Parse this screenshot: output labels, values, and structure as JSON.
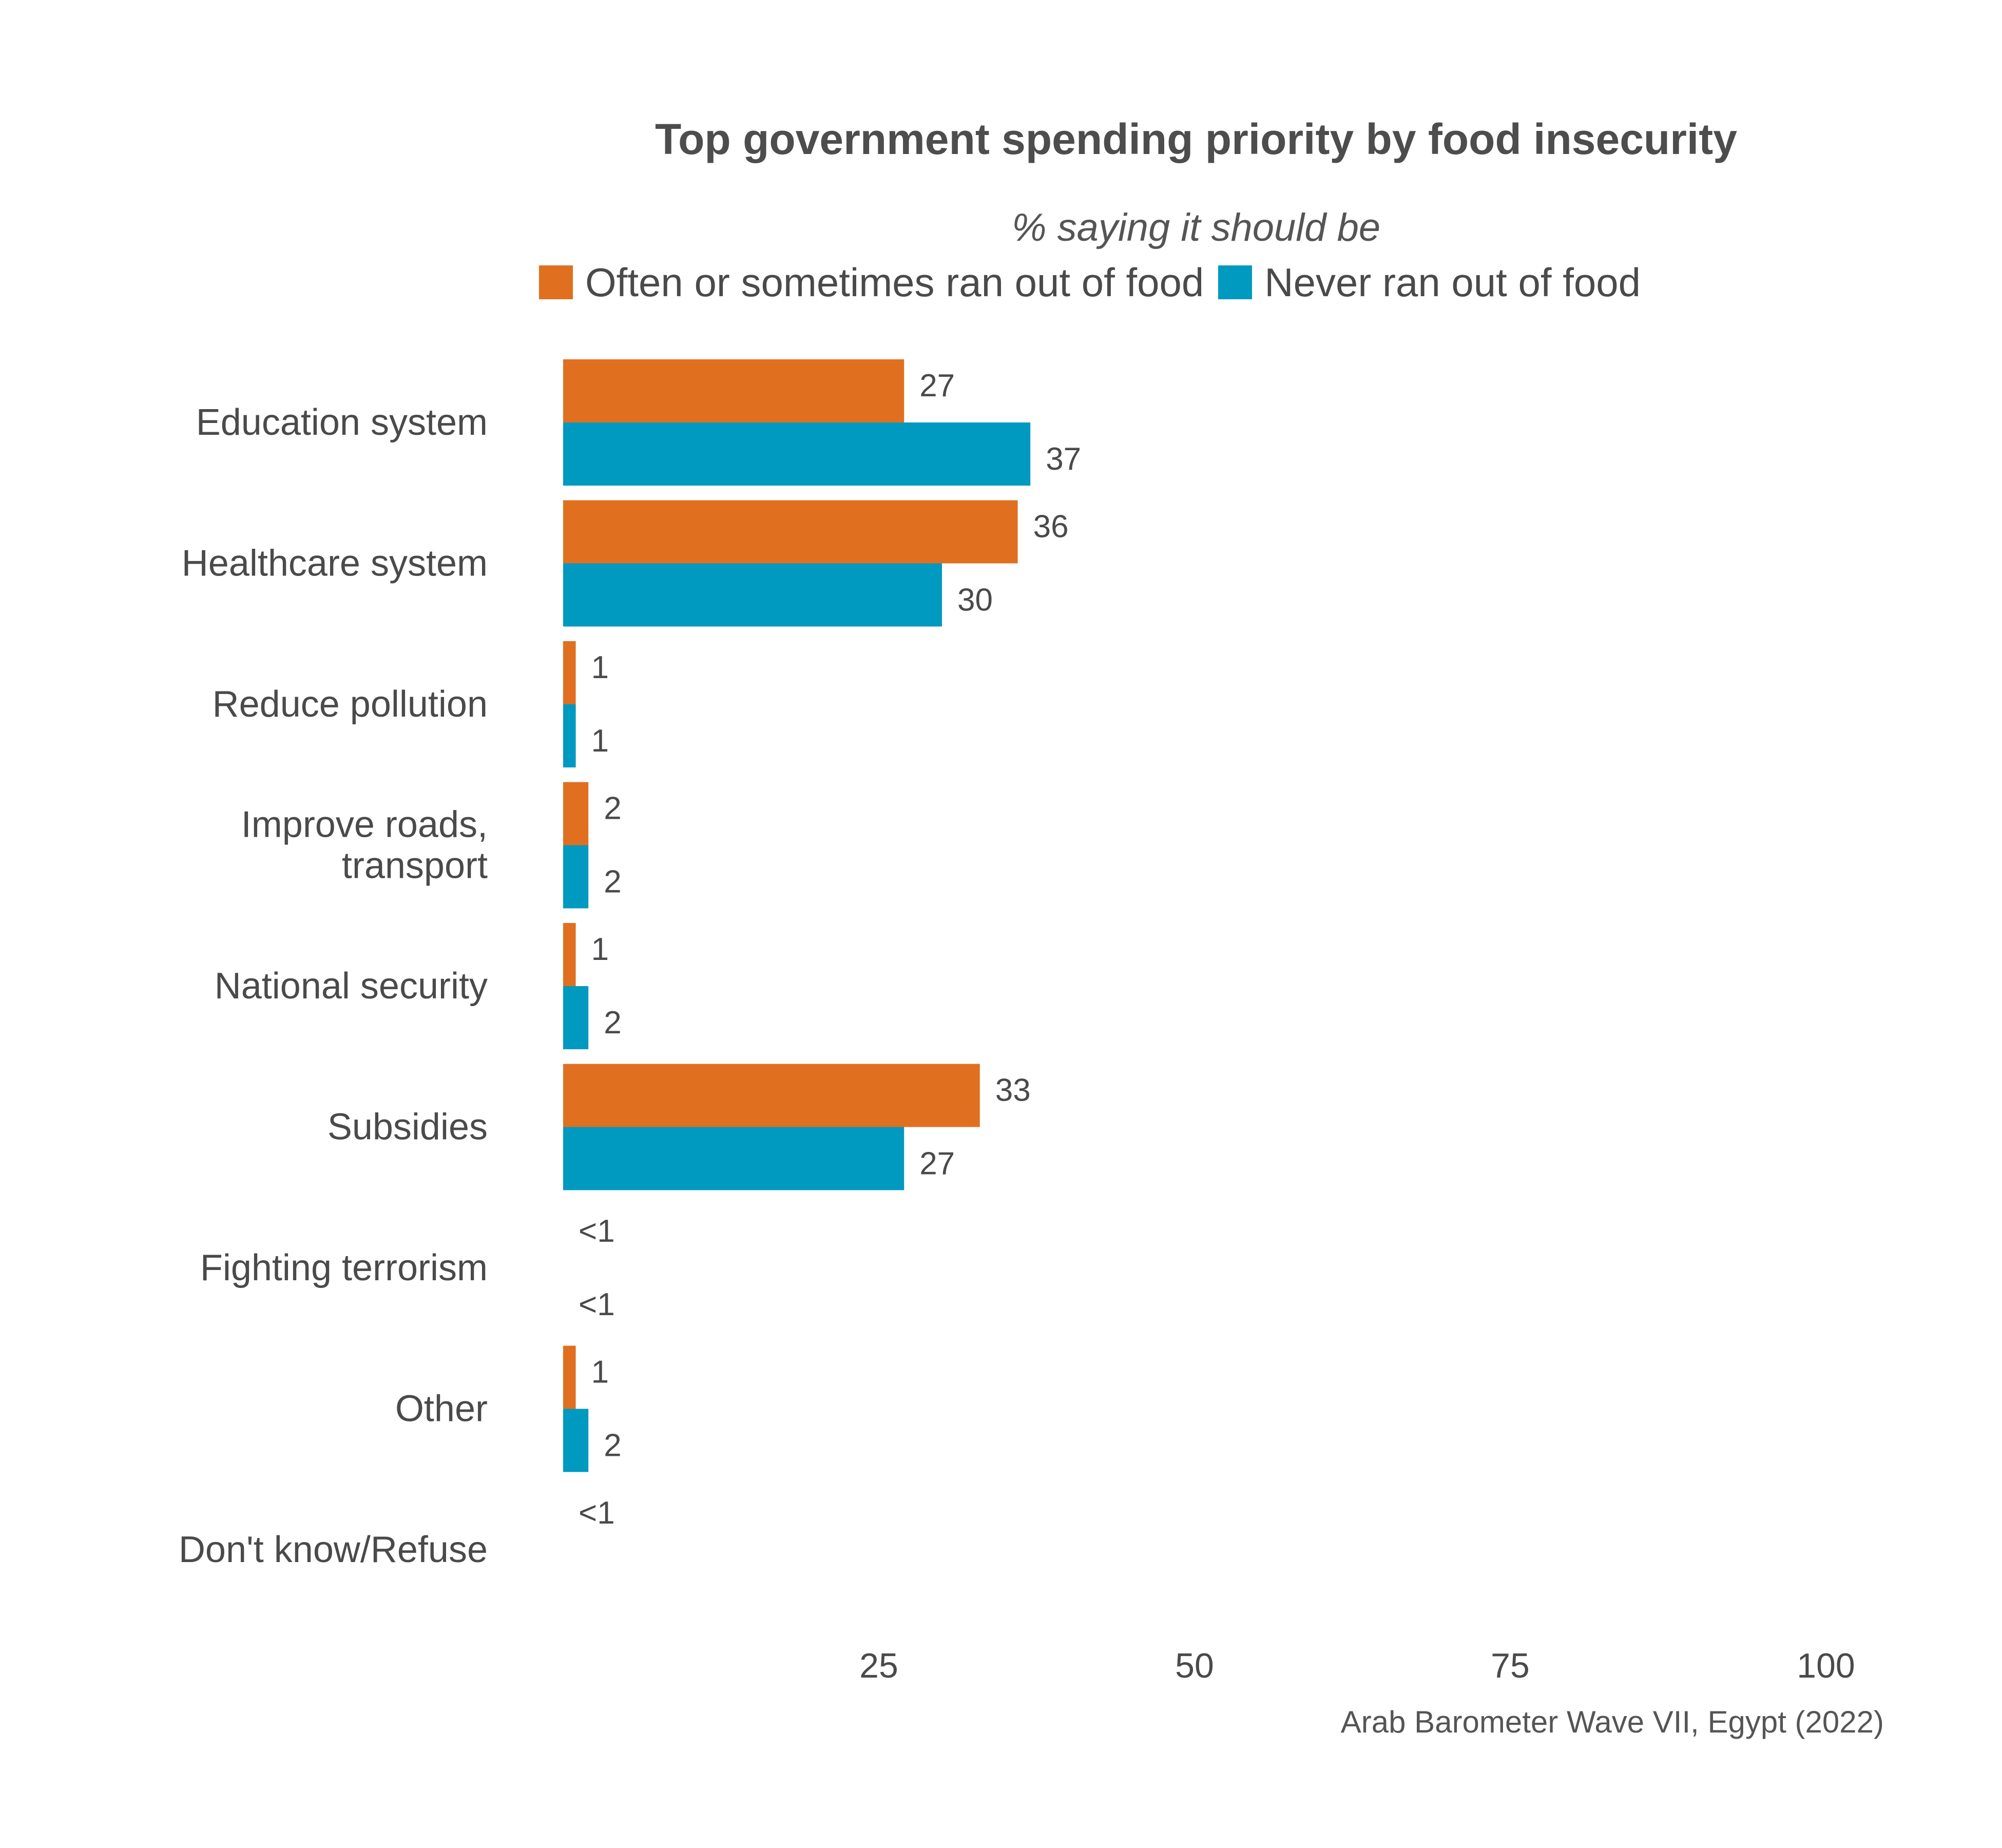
{
  "title": "Top government spending priority by food insecurity",
  "subtitle": "% saying it should be",
  "caption": "Arab Barometer Wave VII, Egypt (2022)",
  "legend": [
    {
      "label": "Often or sometimes ran out of food",
      "color": "#E07020"
    },
    {
      "label": "Never ran out of food",
      "color": "#0099C0"
    }
  ],
  "chart_data": {
    "type": "bar",
    "orientation": "horizontal",
    "categories": [
      "Education system",
      "Healthcare system",
      "Reduce pollution",
      "Improve roads, transport",
      "National security",
      "Subsidies",
      "Fighting terrorism",
      "Other",
      "Don't know/Refuse"
    ],
    "category_label_lines": [
      [
        "Education system"
      ],
      [
        "Healthcare system"
      ],
      [
        "Reduce pollution"
      ],
      [
        "Improve roads,",
        "transport"
      ],
      [
        "National security"
      ],
      [
        "Subsidies"
      ],
      [
        "Fighting terrorism"
      ],
      [
        "Other"
      ],
      [
        "Don't know/Refuse"
      ]
    ],
    "series": [
      {
        "name": "Often or sometimes ran out of food",
        "color": "#E07020",
        "values": [
          27,
          36,
          1,
          2,
          1,
          33,
          0,
          1,
          0
        ],
        "labels": [
          "27",
          "36",
          "1",
          "2",
          "1",
          "33",
          "<1",
          "1",
          "<1"
        ]
      },
      {
        "name": "Never ran out of food",
        "color": "#0099C0",
        "values": [
          37,
          30,
          1,
          2,
          2,
          27,
          0,
          2,
          null
        ],
        "labels": [
          "37",
          "30",
          "1",
          "2",
          "2",
          "27",
          "<1",
          "2",
          ""
        ]
      }
    ],
    "xlim": [
      0,
      100
    ],
    "xticks": [
      25,
      50,
      75,
      100
    ],
    "xlabel": "",
    "ylabel": "",
    "grid": false,
    "legend_position": "top"
  }
}
